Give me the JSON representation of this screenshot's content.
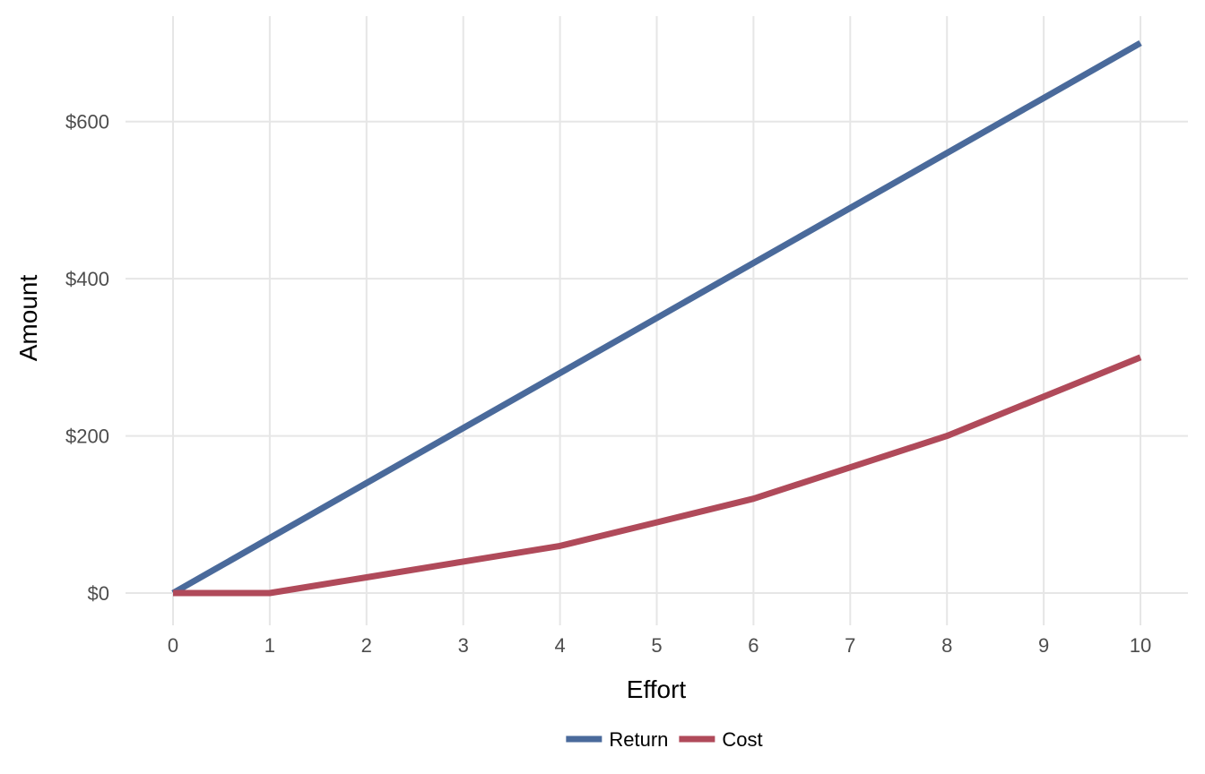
{
  "chart_data": {
    "type": "line",
    "title": "",
    "xlabel": "Effort",
    "ylabel": "Amount",
    "x": [
      0,
      1,
      2,
      3,
      4,
      5,
      6,
      7,
      8,
      9,
      10
    ],
    "xlim": [
      0,
      10
    ],
    "ylim": [
      0,
      700
    ],
    "x_ticks": [
      0,
      1,
      2,
      3,
      4,
      5,
      6,
      7,
      8,
      9,
      10
    ],
    "y_ticks": [
      0,
      200,
      400,
      600
    ],
    "y_tick_labels": [
      "$0",
      "$200",
      "$400",
      "$600"
    ],
    "grid": true,
    "legend_position": "bottom",
    "series": [
      {
        "name": "Return",
        "color": "#4a6a9b",
        "values": [
          0,
          70,
          140,
          210,
          280,
          350,
          420,
          490,
          560,
          630,
          700
        ]
      },
      {
        "name": "Cost",
        "color": "#b04a5a",
        "values": [
          0,
          0,
          20,
          40,
          60,
          90,
          120,
          160,
          200,
          250,
          300
        ]
      }
    ]
  }
}
